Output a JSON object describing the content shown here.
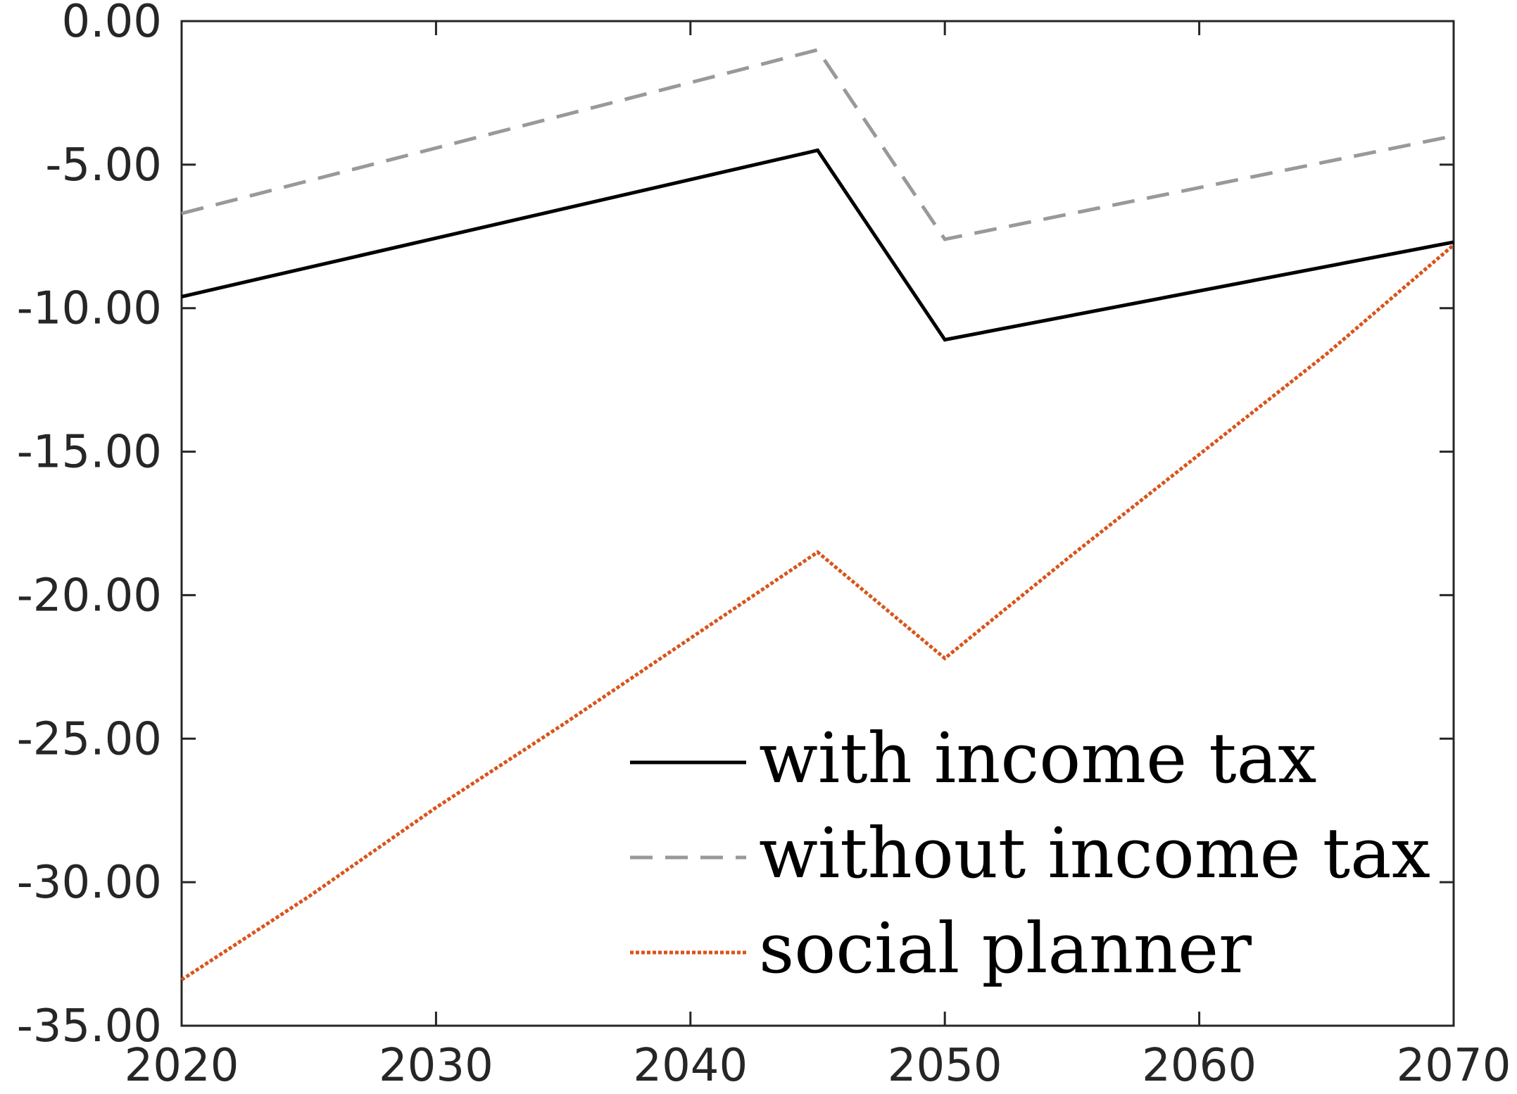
{
  "chart_data": {
    "type": "line",
    "title": "",
    "xlabel": "",
    "ylabel": "",
    "x": [
      2020,
      2045,
      2050,
      2070
    ],
    "xlim": [
      2020,
      2070
    ],
    "ylim": [
      -35,
      0
    ],
    "x_ticks": [
      2020,
      2030,
      2040,
      2050,
      2060,
      2070
    ],
    "x_tick_labels": [
      "2020",
      "2030",
      "2040",
      "2050",
      "2060",
      "2070"
    ],
    "y_ticks": [
      0,
      -5,
      -10,
      -15,
      -20,
      -25,
      -30,
      -35
    ],
    "y_tick_labels": [
      "0.00",
      "-5.00",
      "-10.00",
      "-15.00",
      "-20.00",
      "-25.00",
      "-30.00",
      "-35.00"
    ],
    "grid": false,
    "legend_position": "bottom-right",
    "series": [
      {
        "name": "with income tax",
        "style": "solid",
        "color": "#000000",
        "points": [
          {
            "x": 2020,
            "y": -9.6
          },
          {
            "x": 2045,
            "y": -4.5
          },
          {
            "x": 2050,
            "y": -11.1
          },
          {
            "x": 2070,
            "y": -7.7
          }
        ]
      },
      {
        "name": "without income tax",
        "style": "dashed",
        "color": "#999999",
        "points": [
          {
            "x": 2020,
            "y": -6.7
          },
          {
            "x": 2045,
            "y": -1.0
          },
          {
            "x": 2050,
            "y": -7.6
          },
          {
            "x": 2070,
            "y": -4.0
          }
        ]
      },
      {
        "name": "social planner",
        "style": "dotted",
        "color": "#d95319",
        "points": [
          {
            "x": 2020,
            "y": -33.4
          },
          {
            "x": 2025,
            "y": -30.5
          },
          {
            "x": 2030,
            "y": -27.4
          },
          {
            "x": 2035,
            "y": -24.5
          },
          {
            "x": 2040,
            "y": -21.5
          },
          {
            "x": 2045,
            "y": -18.5
          },
          {
            "x": 2050,
            "y": -22.2
          },
          {
            "x": 2055,
            "y": -18.6
          },
          {
            "x": 2060,
            "y": -15.1
          },
          {
            "x": 2065,
            "y": -11.6
          },
          {
            "x": 2070,
            "y": -7.8
          }
        ]
      }
    ]
  }
}
